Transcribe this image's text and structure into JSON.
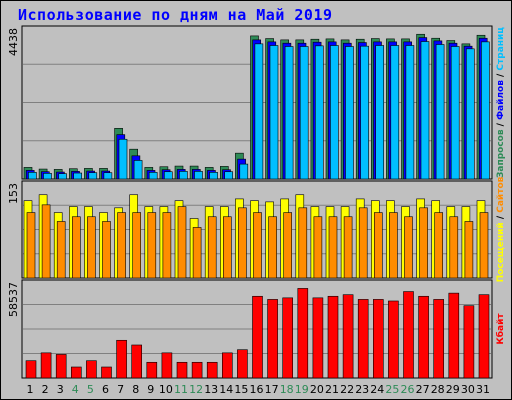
{
  "title": "Использование по дням на Май 2019",
  "colors": {
    "background": "#c0c0c0",
    "panel": "#c0c0c0",
    "hits": "#2e8b57",
    "files": "#0000ff",
    "pages": "#00bfff",
    "visits": "#ffff00",
    "sites": "#ff8c00",
    "kbytes": "#ff0000",
    "weekend_label": "#2e8b57",
    "weekday_label": "#000000"
  },
  "legend_right": {
    "top": [
      {
        "text": "Запросов",
        "color": "#2e8b57"
      },
      {
        "text": " / ",
        "color": "#000000"
      },
      {
        "text": "Файлов",
        "color": "#0000ff"
      },
      {
        "text": " / ",
        "color": "#000000"
      },
      {
        "text": "Страниц",
        "color": "#00bfff"
      }
    ],
    "middle": [
      {
        "text": "Посещений",
        "color": "#ffff00"
      },
      {
        "text": " / ",
        "color": "#000000"
      },
      {
        "text": "Сайтов",
        "color": "#ff8c00"
      }
    ],
    "bottom": [
      {
        "text": "Кбайт",
        "color": "#ff0000"
      }
    ]
  },
  "chart_data": [
    {
      "type": "bar",
      "panel": "hits-files-pages",
      "ymax_label": "4438",
      "ylim": [
        0,
        4438
      ],
      "categories": [
        "1",
        "2",
        "3",
        "4",
        "5",
        "6",
        "7",
        "8",
        "9",
        "10",
        "11",
        "12",
        "13",
        "14",
        "15",
        "16",
        "17",
        "18",
        "19",
        "20",
        "21",
        "22",
        "23",
        "24",
        "25",
        "26",
        "27",
        "28",
        "29",
        "30",
        "31"
      ],
      "weekend_days": [
        "4",
        "5",
        "11",
        "12",
        "18",
        "19",
        "25",
        "26"
      ],
      "series": [
        {
          "name": "Запросов",
          "values": [
            350,
            300,
            290,
            310,
            320,
            320,
            1530,
            900,
            350,
            370,
            390,
            390,
            350,
            380,
            780,
            4320,
            4240,
            4200,
            4200,
            4220,
            4230,
            4200,
            4220,
            4240,
            4230,
            4230,
            4370,
            4250,
            4180,
            4080,
            4340
          ]
        },
        {
          "name": "Файлов",
          "values": [
            260,
            220,
            210,
            230,
            240,
            240,
            1340,
            700,
            260,
            280,
            290,
            290,
            260,
            280,
            600,
            4200,
            4140,
            4100,
            4100,
            4130,
            4140,
            4100,
            4120,
            4140,
            4140,
            4140,
            4270,
            4170,
            4100,
            4010,
            4250
          ]
        },
        {
          "name": "Страниц",
          "values": [
            200,
            170,
            160,
            180,
            190,
            190,
            1200,
            560,
            200,
            220,
            230,
            230,
            200,
            220,
            450,
            4080,
            4030,
            4000,
            4000,
            4020,
            4030,
            4000,
            4010,
            4030,
            4030,
            4030,
            4150,
            4060,
            4000,
            3930,
            4140
          ]
        }
      ]
    },
    {
      "type": "bar",
      "panel": "visits-sites",
      "ymax_label": "153",
      "ylim": [
        0,
        153
      ],
      "categories": [
        "1",
        "2",
        "3",
        "4",
        "5",
        "6",
        "7",
        "8",
        "9",
        "10",
        "11",
        "12",
        "13",
        "14",
        "15",
        "16",
        "17",
        "18",
        "19",
        "20",
        "21",
        "22",
        "23",
        "24",
        "25",
        "26",
        "27",
        "28",
        "29",
        "30",
        "31"
      ],
      "series": [
        {
          "name": "Посещений",
          "values": [
            130,
            140,
            110,
            120,
            120,
            110,
            118,
            140,
            120,
            120,
            130,
            100,
            120,
            120,
            133,
            130,
            128,
            133,
            140,
            120,
            120,
            120,
            133,
            130,
            130,
            120,
            133,
            130,
            120,
            120,
            130
          ]
        },
        {
          "name": "Сайтов",
          "values": [
            110,
            123,
            95,
            103,
            103,
            95,
            110,
            110,
            110,
            110,
            120,
            85,
            103,
            103,
            118,
            110,
            103,
            110,
            118,
            103,
            103,
            103,
            118,
            110,
            110,
            103,
            118,
            110,
            103,
            95,
            110
          ]
        }
      ]
    },
    {
      "type": "bar",
      "panel": "kbytes",
      "ymax_label": "58537",
      "ylim": [
        0,
        58537
      ],
      "categories": [
        "1",
        "2",
        "3",
        "4",
        "5",
        "6",
        "7",
        "8",
        "9",
        "10",
        "11",
        "12",
        "13",
        "14",
        "15",
        "16",
        "17",
        "18",
        "19",
        "20",
        "21",
        "22",
        "23",
        "24",
        "25",
        "26",
        "27",
        "28",
        "29",
        "30",
        "31"
      ],
      "series": [
        {
          "name": "Кбайт",
          "values": [
            11000,
            16000,
            15000,
            7000,
            11000,
            7000,
            24000,
            21000,
            10000,
            16000,
            10000,
            10000,
            10000,
            16000,
            18000,
            52000,
            50000,
            51000,
            57000,
            51000,
            52000,
            53000,
            50000,
            50000,
            49000,
            55000,
            52000,
            50000,
            54000,
            46000,
            53000
          ]
        }
      ]
    }
  ]
}
